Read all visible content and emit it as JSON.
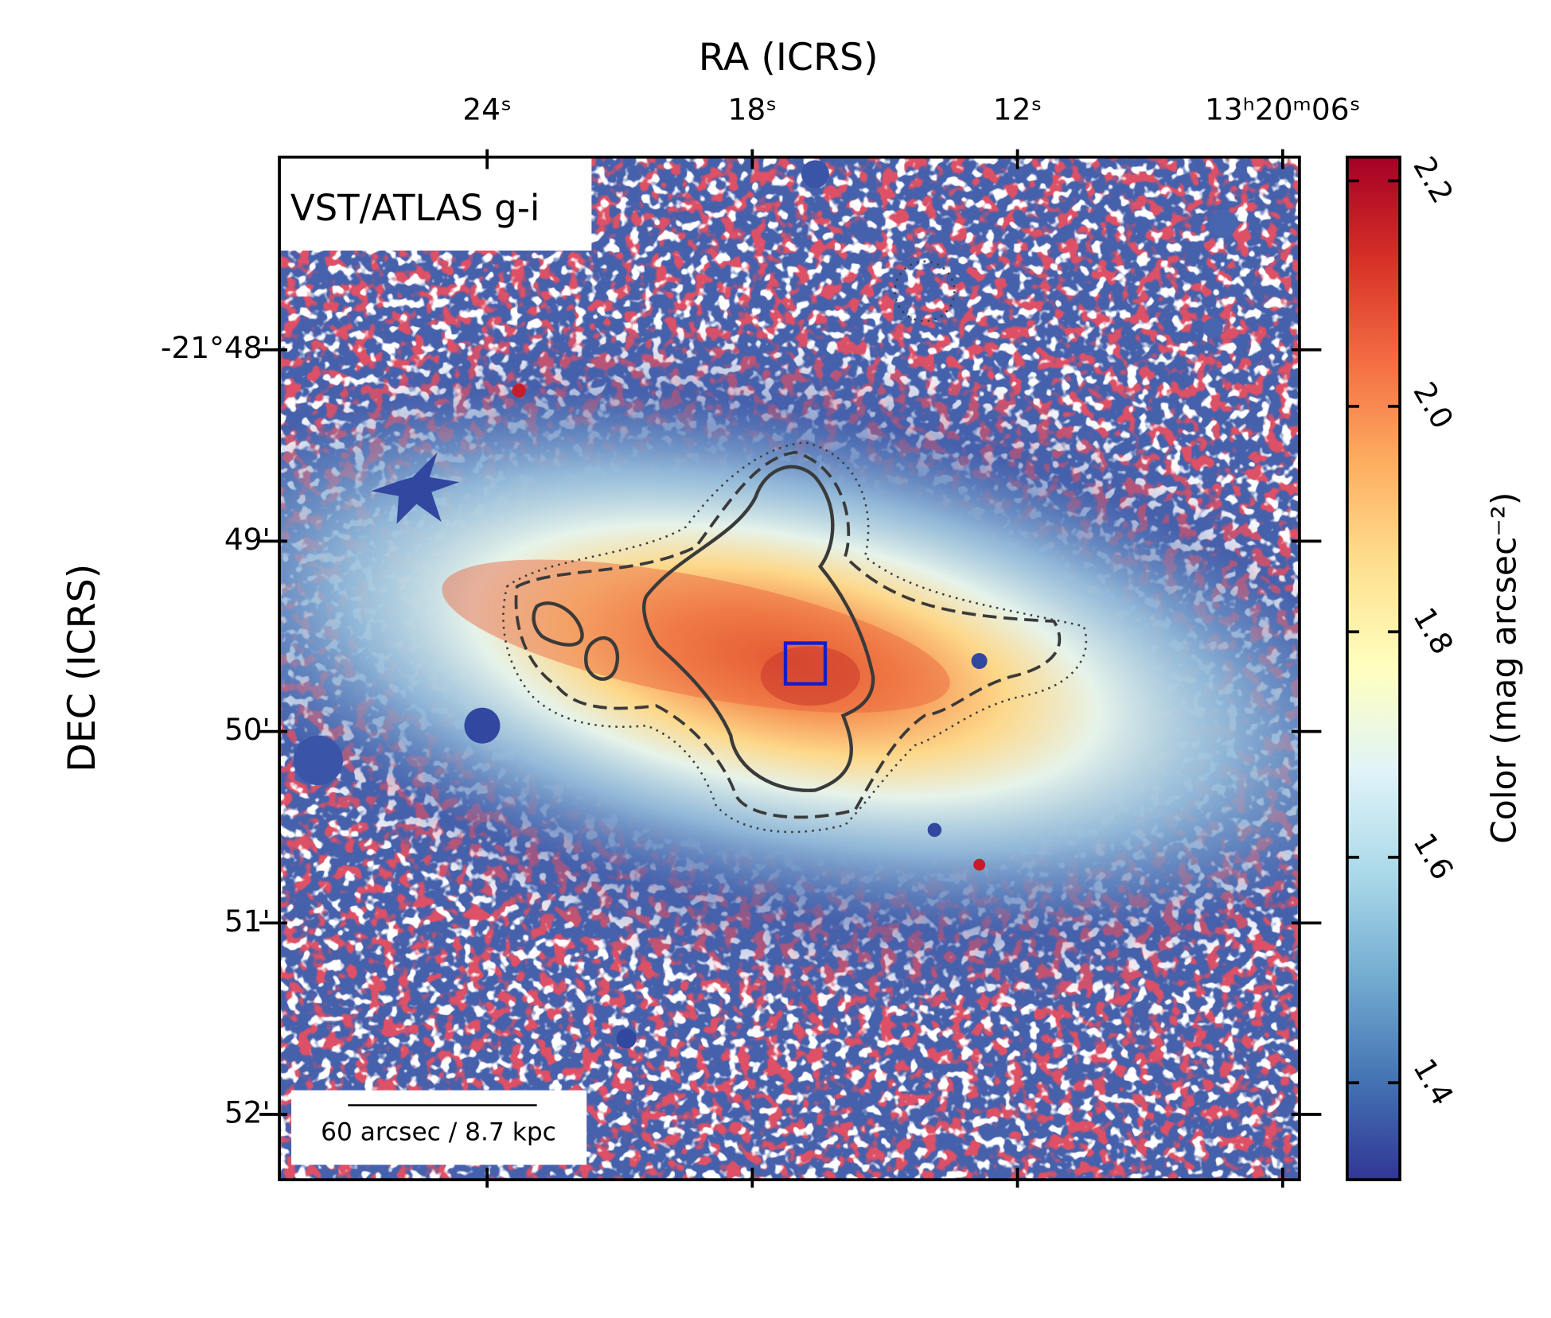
{
  "chart_data": {
    "type": "image",
    "title": "VST/ATLAS g-i",
    "xlabel": "RA (ICRS)",
    "ylabel": "DEC (ICRS)",
    "scale_bar": "60 arcsec / 8.7 kpc",
    "xlim": [
      28.7,
      5.62
    ],
    "xticks": [
      {
        "value": 24,
        "label": "24ˢ"
      },
      {
        "value": 18,
        "label": "18ˢ"
      },
      {
        "value": 12,
        "label": "12ˢ"
      },
      {
        "value": 6,
        "label": "13ʰ20ᵐ06ˢ"
      }
    ],
    "ylim": [
      -21.8724,
      -21.7832
    ],
    "yticks": [
      {
        "value": -21.8,
        "label": "-21°48'"
      },
      {
        "value": -21.8167,
        "label": "49'"
      },
      {
        "value": -21.8333,
        "label": "50'"
      },
      {
        "value": -21.85,
        "label": "51'"
      },
      {
        "value": -21.8667,
        "label": "52'"
      }
    ],
    "colorbar": {
      "label": "Color (mag arcsec⁻²)",
      "lim": [
        1.314,
        2.221
      ],
      "ticks": [
        1.4,
        1.6,
        1.8,
        {
          "value": 2,
          "label": "2.0"
        },
        2.2
      ],
      "colormap": "RdYlBu_r"
    }
  }
}
